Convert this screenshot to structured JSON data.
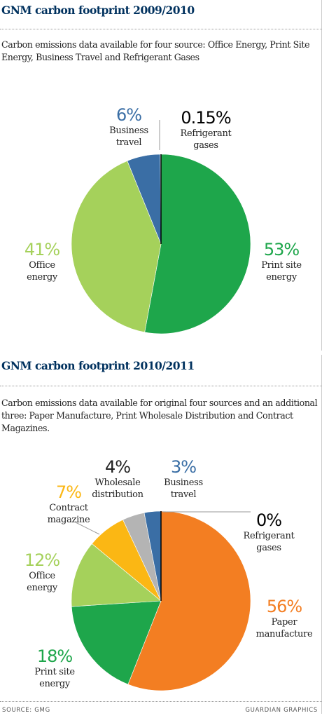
{
  "chart_data": [
    {
      "type": "pie",
      "title": "GNM carbon footprint 2009/2010",
      "subtitle": "Carbon emissions data available for four source:  Office Energy, Print Site Energy, Business Travel and Refrigerant Gases",
      "slices": [
        {
          "name": [
            "Print site",
            "energy"
          ],
          "value_label": "53%",
          "value": 53,
          "color": "#1ea64b"
        },
        {
          "name": [
            "Office",
            "energy"
          ],
          "value_label": "41%",
          "value": 41,
          "color": "#a5d15b"
        },
        {
          "name": [
            "Business",
            "travel"
          ],
          "value_label": "6%",
          "value": 6,
          "color": "#3a6ea5"
        },
        {
          "name": [
            "Refrigerant",
            "gases"
          ],
          "value_label": "0.15%",
          "value": 0.15,
          "color": "#000000"
        }
      ]
    },
    {
      "type": "pie",
      "title": "GNM carbon footprint 2010/2011",
      "subtitle": "Carbon emissions data available for original four sources  and an additional three: Paper Manufacture, Print Wholesale Distribution and Contract Magazines.",
      "slices": [
        {
          "name": [
            "Paper",
            "manufacture"
          ],
          "value_label": "56%",
          "value": 56,
          "color": "#f37e22"
        },
        {
          "name": [
            "Print site",
            "energy"
          ],
          "value_label": "18%",
          "value": 18,
          "color": "#1ea64b"
        },
        {
          "name": [
            "Office",
            "energy"
          ],
          "value_label": "12%",
          "value": 12,
          "color": "#a5d15b"
        },
        {
          "name": [
            "Contract",
            "magazine"
          ],
          "value_label": "7%",
          "value": 7,
          "color": "#fbb714"
        },
        {
          "name": [
            "Wholesale",
            "distribution"
          ],
          "value_label": "4%",
          "value": 4,
          "color": "#b4b4b4"
        },
        {
          "name": [
            "Business",
            "travel"
          ],
          "value_label": "3%",
          "value": 3,
          "color": "#3a6ea5"
        },
        {
          "name": [
            "Refrigerant",
            "gases"
          ],
          "value_label": "0%",
          "value": 0,
          "color": "#000000"
        }
      ]
    }
  ],
  "footer": {
    "source": "SOURCE: GMG",
    "credit": "GUARDIAN GRAPHICS"
  }
}
